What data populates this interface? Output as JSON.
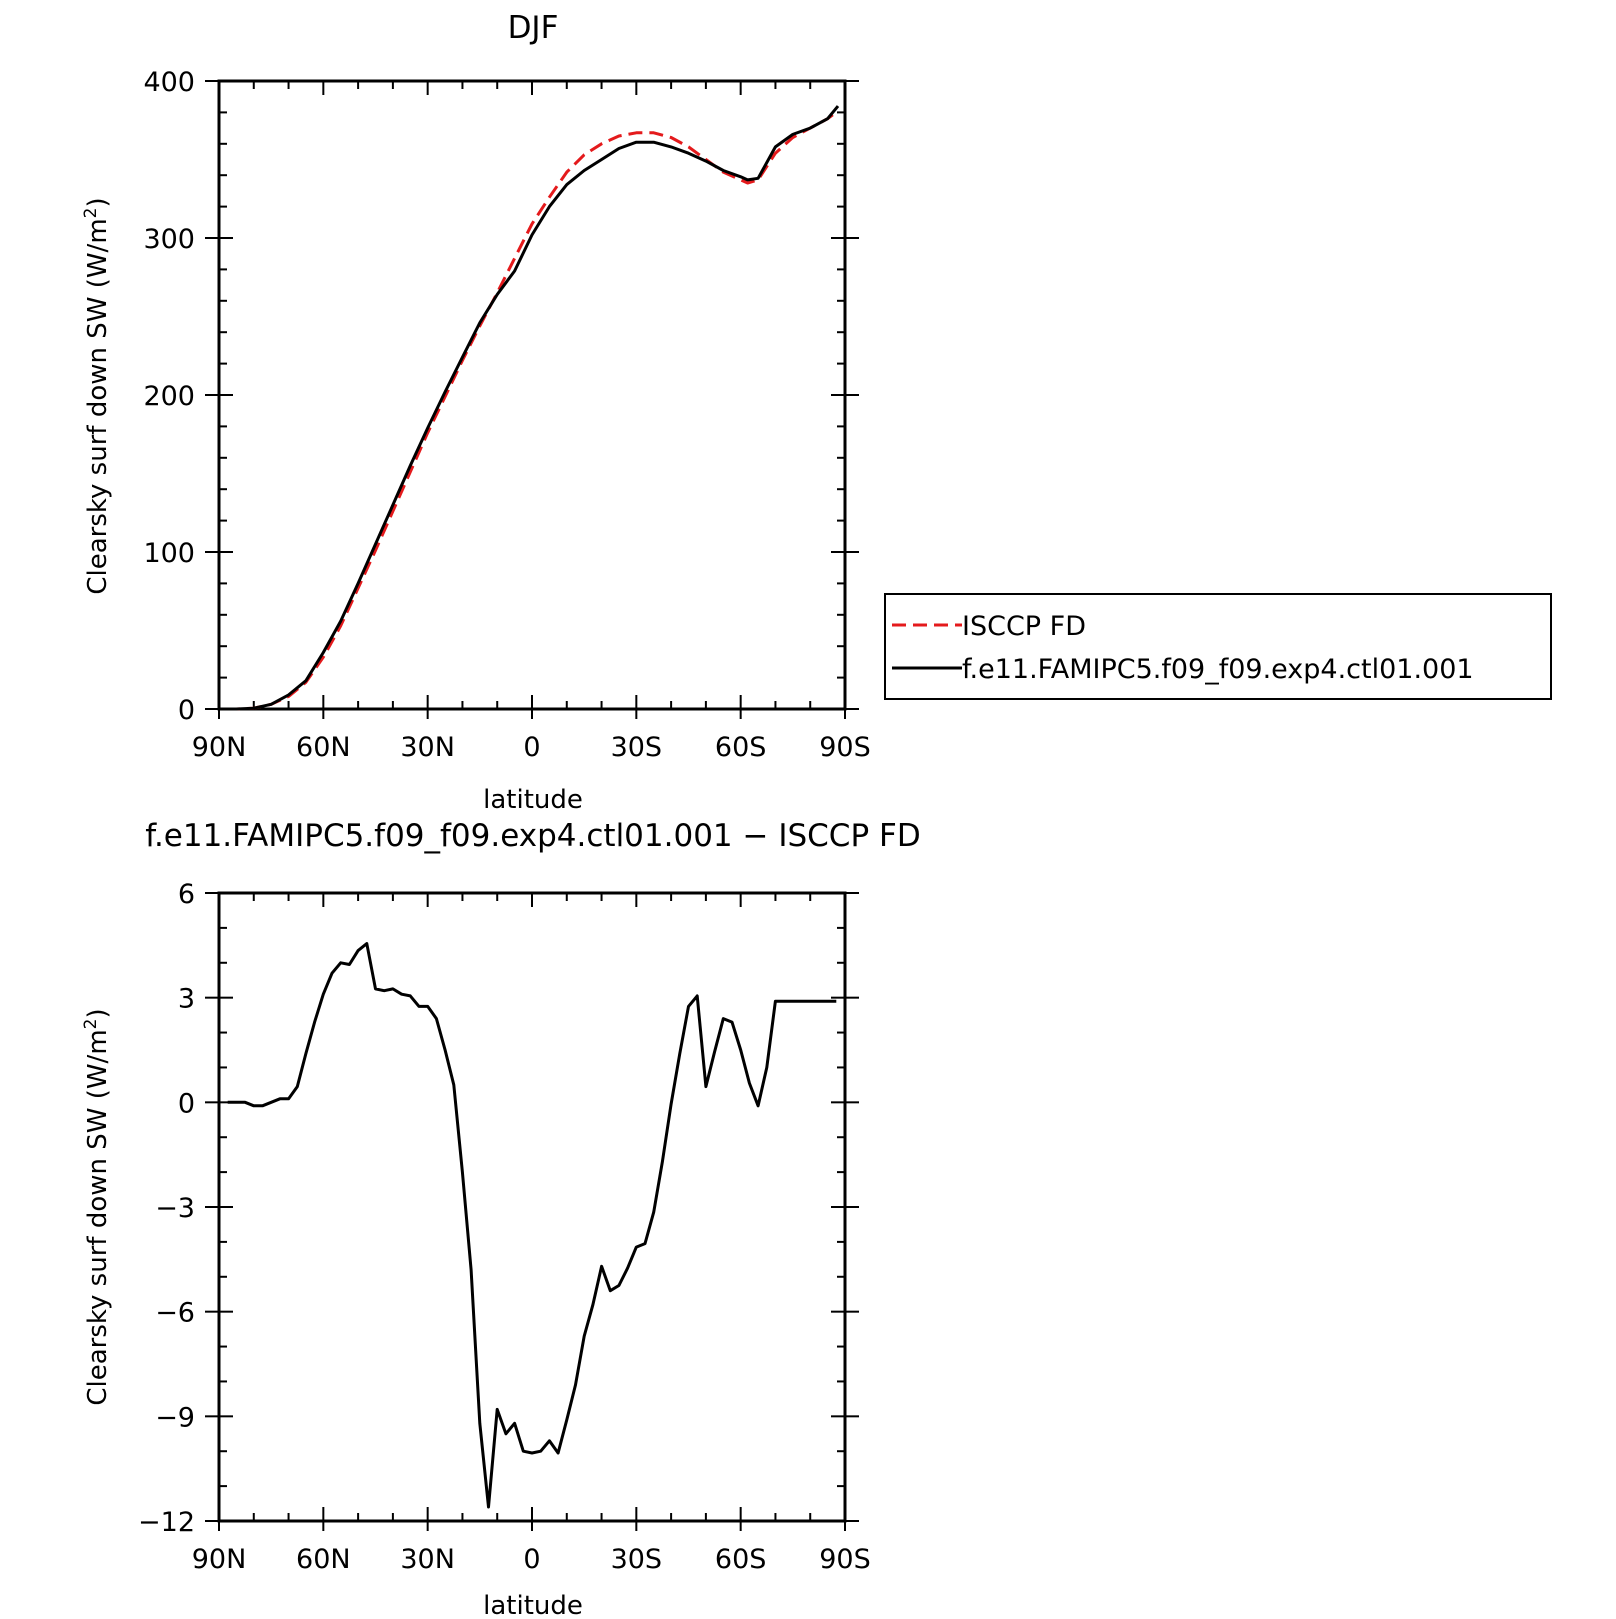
{
  "chart_data": [
    {
      "type": "line",
      "title": "DJF",
      "xlabel": "latitude",
      "ylabel": "Clearsky surf down SW (W/m²)",
      "ylabel_parts": {
        "main": "Clearsky surf down SW (W/m",
        "sup": "2",
        "end": ")"
      },
      "xlim": [
        -90,
        90
      ],
      "ylim": [
        0,
        400
      ],
      "xticks": [
        -90,
        -60,
        -30,
        0,
        30,
        60,
        90
      ],
      "xtick_labels": [
        "90N",
        "60N",
        "30N",
        "0",
        "30S",
        "60S",
        "90S"
      ],
      "yticks": [
        0,
        100,
        200,
        300,
        400
      ],
      "ytick_labels": [
        "0",
        "100",
        "200",
        "300",
        "400"
      ],
      "legend": {
        "placement": "right",
        "entries": [
          "ISCCP FD",
          "f.e11.FAMIPC5.f09_f09.exp4.ctl01.001"
        ]
      },
      "series": [
        {
          "name": "ISCCP FD",
          "color": "#e41a1c",
          "dash": "dashed",
          "x": [
            -88,
            -85,
            -80,
            -75,
            -70,
            -65,
            -60,
            -55,
            -50,
            -45,
            -40,
            -35,
            -30,
            -25,
            -20,
            -15,
            -10,
            -5,
            0,
            5,
            10,
            15,
            20,
            25,
            30,
            35,
            40,
            45,
            50,
            55,
            60,
            62,
            65,
            70,
            75,
            80,
            85,
            88
          ],
          "values": [
            0,
            0,
            0.5,
            3,
            8,
            17,
            33,
            53,
            77,
            101,
            126,
            151,
            176,
            199,
            222,
            244,
            265,
            287,
            309,
            326,
            342,
            353,
            360,
            365,
            367,
            367,
            364,
            358,
            350,
            342,
            337,
            335,
            337,
            354,
            364,
            370,
            376,
            381
          ]
        },
        {
          "name": "f.e11.FAMIPC5.f09_f09.exp4.ctl01.001",
          "color": "#000000",
          "dash": "solid",
          "x": [
            -88,
            -85,
            -80,
            -75,
            -70,
            -65,
            -60,
            -55,
            -50,
            -45,
            -40,
            -35,
            -30,
            -25,
            -20,
            -15,
            -10,
            -5,
            0,
            5,
            10,
            15,
            20,
            25,
            30,
            35,
            40,
            45,
            50,
            55,
            60,
            62,
            65,
            70,
            75,
            80,
            85,
            88
          ],
          "values": [
            0,
            0,
            0.5,
            3,
            9,
            18,
            36,
            56,
            80,
            105,
            130,
            155,
            179,
            202,
            224,
            246,
            264,
            279,
            302,
            320,
            334,
            343,
            350,
            357,
            361,
            361,
            358,
            354,
            349,
            343,
            339,
            337,
            338,
            358,
            366,
            370,
            376,
            384
          ]
        }
      ]
    },
    {
      "type": "line",
      "title": "f.e11.FAMIPC5.f09_f09.exp4.ctl01.001 − ISCCP FD",
      "xlabel": "latitude",
      "ylabel": "Clearsky surf down SW (W/m²)",
      "ylabel_parts": {
        "main": "Clearsky surf down SW (W/m",
        "sup": "2",
        "end": ")"
      },
      "xlim": [
        -90,
        90
      ],
      "ylim": [
        -12,
        6
      ],
      "xticks": [
        -90,
        -60,
        -30,
        0,
        30,
        60,
        90
      ],
      "xtick_labels": [
        "90N",
        "60N",
        "30N",
        "0",
        "30S",
        "60S",
        "90S"
      ],
      "yticks": [
        -12,
        -9,
        -6,
        -3,
        0,
        3,
        6
      ],
      "ytick_labels": [
        "−12",
        "−9",
        "−6",
        "−3",
        "0",
        "3",
        "6"
      ],
      "series": [
        {
          "color": "#000000",
          "dash": "solid",
          "x": [
            -87.5,
            -85,
            -82.5,
            -80,
            -77.5,
            -75,
            -72.5,
            -70,
            -67.5,
            -65,
            -62.5,
            -60,
            -57.5,
            -55,
            -52.5,
            -50,
            -47.5,
            -45,
            -42.5,
            -40,
            -37.5,
            -35,
            -32.5,
            -30,
            -27.5,
            -25,
            -22.5,
            -20,
            -17.5,
            -15,
            -12.5,
            -10,
            -7.5,
            -5,
            -2.5,
            0,
            2.5,
            5,
            7.5,
            10,
            12.5,
            15,
            17.5,
            20,
            22.5,
            25,
            27.5,
            30,
            32.5,
            35,
            37.5,
            40,
            42.5,
            45,
            47.5,
            50,
            52.5,
            55,
            57.5,
            60,
            62.5,
            65,
            67.5,
            70,
            72.5,
            75,
            77.5,
            80,
            82.5,
            85,
            87.5
          ],
          "values": [
            0,
            0,
            0,
            -0.1,
            -0.1,
            0,
            0.1,
            0.1,
            0.45,
            1.4,
            2.3,
            3.1,
            3.7,
            4.0,
            3.95,
            4.35,
            4.55,
            3.25,
            3.2,
            3.25,
            3.1,
            3.05,
            2.75,
            2.75,
            2.4,
            1.5,
            0.5,
            -2.0,
            -4.8,
            -9.2,
            -11.6,
            -8.8,
            -9.5,
            -9.2,
            -10.0,
            -10.05,
            -10.0,
            -9.7,
            -10.05,
            -9.1,
            -8.1,
            -6.7,
            -5.8,
            -4.7,
            -5.4,
            -5.25,
            -4.75,
            -4.15,
            -4.05,
            -3.15,
            -1.7,
            -0.05,
            1.4,
            2.75,
            3.05,
            0.45,
            1.45,
            2.4,
            2.3,
            1.5,
            0.55,
            -0.1,
            1.0,
            2.9,
            2.9,
            2.9,
            2.9,
            2.9,
            2.9,
            2.9,
            2.9
          ]
        }
      ]
    }
  ]
}
